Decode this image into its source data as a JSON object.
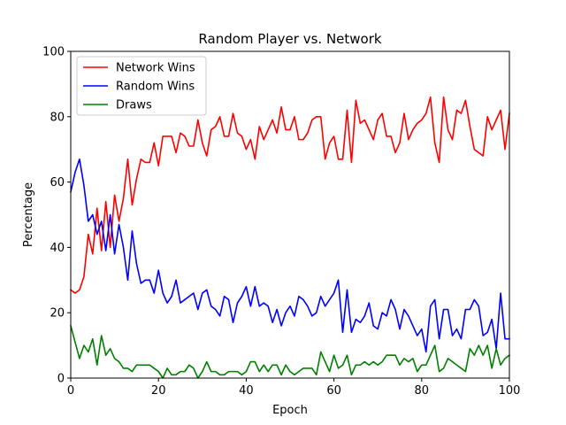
{
  "chart_data": {
    "type": "line",
    "title": "Random Player vs. Network",
    "xlabel": "Epoch",
    "ylabel": "Percentage",
    "xlim": [
      0,
      100
    ],
    "ylim": [
      0,
      100
    ],
    "xticks": [
      0,
      20,
      40,
      60,
      80,
      100
    ],
    "yticks": [
      0,
      20,
      40,
      60,
      80,
      100
    ],
    "grid": false,
    "legend_position": "top-left",
    "x": [
      0,
      1,
      2,
      3,
      4,
      5,
      6,
      7,
      8,
      9,
      10,
      11,
      12,
      13,
      14,
      15,
      16,
      17,
      18,
      19,
      20,
      21,
      22,
      23,
      24,
      25,
      26,
      27,
      28,
      29,
      30,
      31,
      32,
      33,
      34,
      35,
      36,
      37,
      38,
      39,
      40,
      41,
      42,
      43,
      44,
      45,
      46,
      47,
      48,
      49,
      50,
      51,
      52,
      53,
      54,
      55,
      56,
      57,
      58,
      59,
      60,
      61,
      62,
      63,
      64,
      65,
      66,
      67,
      68,
      69,
      70,
      71,
      72,
      73,
      74,
      75,
      76,
      77,
      78,
      79,
      80,
      81,
      82,
      83,
      84,
      85,
      86,
      87,
      88,
      89,
      90,
      91,
      92,
      93,
      94,
      95,
      96,
      97,
      98,
      99,
      100
    ],
    "series": [
      {
        "name": "Network Wins",
        "color": "#ff0000",
        "values": [
          27,
          26,
          27,
          31,
          44,
          38,
          52,
          39,
          54,
          40,
          56,
          48,
          55,
          67,
          53,
          61,
          67,
          66,
          66,
          72,
          65,
          74,
          74,
          74,
          69,
          75,
          74,
          71,
          71,
          79,
          72,
          68,
          76,
          77,
          80,
          74,
          74,
          81,
          75,
          74,
          70,
          73,
          67,
          77,
          73,
          76,
          79,
          75,
          83,
          76,
          76,
          80,
          73,
          73,
          75,
          79,
          80,
          80,
          67,
          72,
          74,
          67,
          67,
          82,
          66,
          85,
          78,
          79,
          76,
          73,
          79,
          81,
          74,
          74,
          69,
          72,
          81,
          73,
          76,
          78,
          79,
          81,
          86,
          72,
          66,
          86,
          76,
          73,
          82,
          81,
          85,
          77,
          70,
          69,
          68,
          80,
          76,
          79,
          82,
          70,
          81
        ]
      },
      {
        "name": "Random Wins",
        "color": "#0000ff",
        "values": [
          57,
          63,
          67,
          59,
          48,
          50,
          44,
          48,
          39,
          50,
          38,
          47,
          40,
          30,
          45,
          35,
          29,
          30,
          30,
          26,
          33,
          26,
          23,
          25,
          30,
          23,
          24,
          25,
          26,
          21,
          26,
          27,
          22,
          21,
          19,
          25,
          24,
          17,
          23,
          25,
          28,
          22,
          28,
          22,
          23,
          22,
          17,
          21,
          16,
          20,
          22,
          19,
          25,
          24,
          22,
          19,
          20,
          25,
          22,
          24,
          26,
          30,
          14,
          27,
          14,
          18,
          17,
          19,
          23,
          16,
          15,
          20,
          19,
          24,
          21,
          15,
          21,
          19,
          16,
          13,
          15,
          8,
          22,
          24,
          12,
          21,
          21,
          13,
          15,
          12,
          21,
          21,
          24,
          22,
          13,
          14,
          18,
          9,
          26,
          12,
          12
        ]
      },
      {
        "name": "Draws",
        "color": "#008000",
        "values": [
          16,
          11,
          6,
          10,
          8,
          12,
          4,
          13,
          7,
          9,
          6,
          5,
          3,
          3,
          2,
          4,
          4,
          4,
          4,
          3,
          2,
          0,
          3,
          1,
          1,
          2,
          2,
          4,
          3,
          0,
          2,
          5,
          2,
          2,
          1,
          1,
          2,
          2,
          2,
          1,
          2,
          5,
          5,
          2,
          4,
          2,
          4,
          4,
          1,
          4,
          2,
          1,
          2,
          3,
          3,
          3,
          1,
          8,
          5,
          2,
          7,
          3,
          4,
          7,
          1,
          4,
          4,
          5,
          4,
          5,
          4,
          5,
          7,
          7,
          7,
          4,
          6,
          5,
          6,
          2,
          4,
          4,
          7,
          10,
          2,
          3,
          6,
          5,
          4,
          3,
          2,
          9,
          7,
          10,
          7,
          10,
          3,
          9,
          4,
          6,
          7
        ]
      }
    ]
  }
}
